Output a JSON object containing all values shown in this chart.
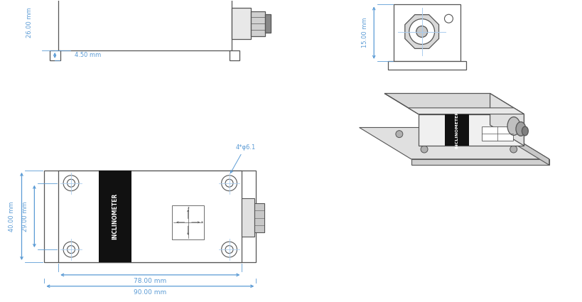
{
  "bg_color": "#ffffff",
  "dim_color": "#5b9bd5",
  "line_color": "#555555",
  "dark_color": "#111111",
  "labels": {
    "dim_26": "26.00 mm",
    "dim_45": "4.50 mm",
    "dim_15": "15.00 mm",
    "dim_78": "78.00 mm",
    "dim_90": "90.00 mm",
    "dim_40": "40.00 mm",
    "dim_29": "29.00 mm",
    "hole": "4*φ6.1",
    "inclinometer": "INCLINOMETER"
  }
}
